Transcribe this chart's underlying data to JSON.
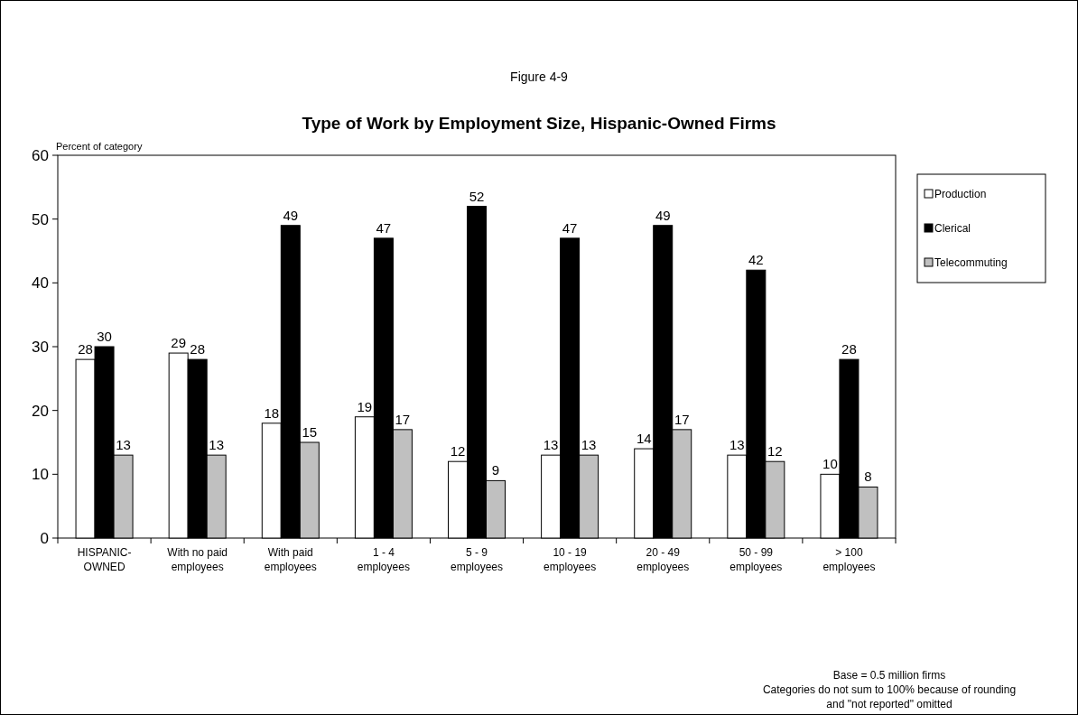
{
  "chart_data": {
    "type": "bar",
    "title": "Type of Work by Employment Size, Hispanic-Owned Firms",
    "subtitle": "Figure 4-9",
    "ylabel": "Percent of category",
    "categories": [
      "HISPANIC-\nOWNED",
      "With no paid\nemployees",
      "With paid\nemployees",
      "1 - 4\nemployees",
      "5 - 9\nemployees",
      "10 - 19\nemployees",
      "20 - 49\nemployees",
      "50 - 99\nemployees",
      "> 100\nemployees"
    ],
    "series": [
      {
        "name": "Production",
        "color": "#ffffff",
        "values": [
          28,
          29,
          18,
          19,
          12,
          13,
          14,
          13,
          10
        ]
      },
      {
        "name": "Clerical",
        "color": "#000000",
        "values": [
          30,
          28,
          49,
          47,
          52,
          47,
          49,
          42,
          28
        ]
      },
      {
        "name": "Telecommuting",
        "color": "#c0c0c0",
        "values": [
          13,
          13,
          15,
          17,
          9,
          13,
          17,
          12,
          8
        ]
      }
    ],
    "ylim": [
      0,
      60
    ],
    "yticks": [
      0,
      10,
      20,
      30,
      40,
      50,
      60
    ],
    "grid": false,
    "legend": "top right",
    "data_labels": true,
    "annotations": [
      "Base = 0.5 million firms",
      "Categories do not sum to 100% because of rounding\nand \"not reported\" omitted"
    ]
  }
}
